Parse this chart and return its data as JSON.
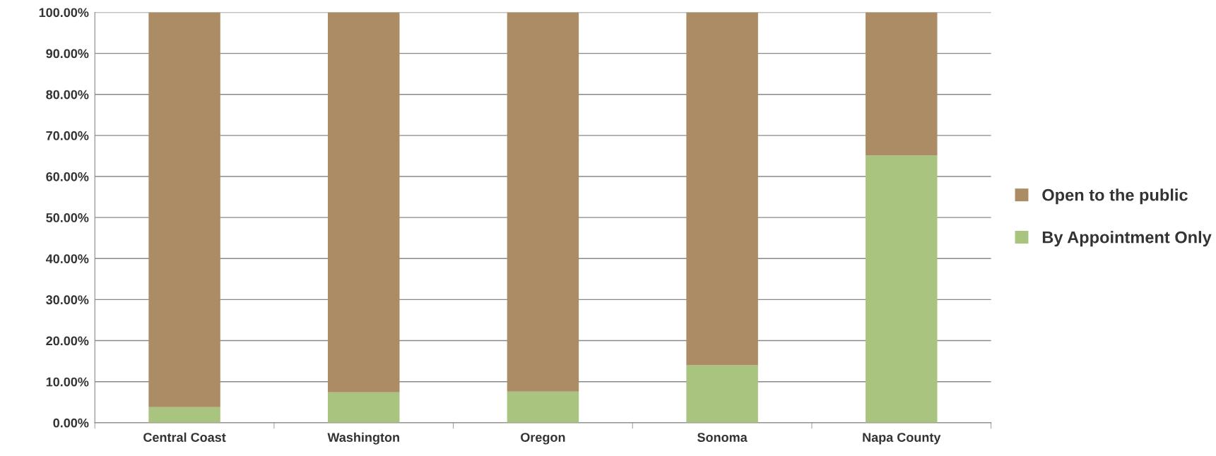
{
  "chart_data": {
    "type": "bar",
    "stacked": true,
    "categories": [
      "Central Coast",
      "Washington",
      "Oregon",
      "Sonoma",
      "Napa County"
    ],
    "series": [
      {
        "name": "By Appointment Only",
        "color": "#a9c47f",
        "values": [
          3.8,
          7.4,
          7.6,
          14.0,
          65.1
        ]
      },
      {
        "name": "Open to the public",
        "color": "#ac8c64",
        "values": [
          96.2,
          92.6,
          92.4,
          86.0,
          34.9
        ]
      }
    ],
    "ylim": [
      0,
      100
    ],
    "yticks": [
      {
        "value": 0,
        "label": "0.00%"
      },
      {
        "value": 10,
        "label": "10.00%"
      },
      {
        "value": 20,
        "label": "20.00%"
      },
      {
        "value": 30,
        "label": "30.00%"
      },
      {
        "value": 40,
        "label": "40.00%"
      },
      {
        "value": 50,
        "label": "50.00%"
      },
      {
        "value": 60,
        "label": "60.00%"
      },
      {
        "value": 70,
        "label": "70.00%"
      },
      {
        "value": 80,
        "label": "80.00%"
      },
      {
        "value": 90,
        "label": "90.00%"
      },
      {
        "value": 100,
        "label": "100.00%"
      }
    ],
    "grid": "y",
    "legend": "right"
  }
}
